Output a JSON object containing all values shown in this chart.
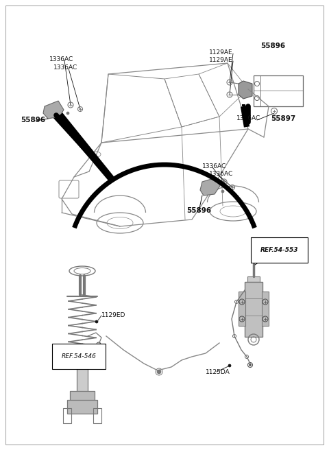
{
  "background_color": "#ffffff",
  "border_color": "#aaaaaa",
  "fig_width": 4.8,
  "fig_height": 6.56,
  "dpi": 100,
  "car_color": "#888888",
  "part_color": "#666666",
  "arrow_color": "#111111",
  "text_color": "#111111",
  "font_size": 6.5,
  "font_size_ref": 6.5,
  "labels": {
    "tl_1": "1336AC",
    "tl_2": "1336AC",
    "tl_num": "55896",
    "tr_1": "1129AE",
    "tr_2": "1129AE",
    "tr_num": "55896",
    "tr_bracket": "1336AC",
    "tr_num2": "55897",
    "mr_1": "1336AC",
    "mr_2": "1336AC",
    "mr_num": "55896",
    "bl_ref": "REF.54-546",
    "bl_part": "1129ED",
    "br_ref": "REF.54-553",
    "br_part": "1125DA"
  }
}
